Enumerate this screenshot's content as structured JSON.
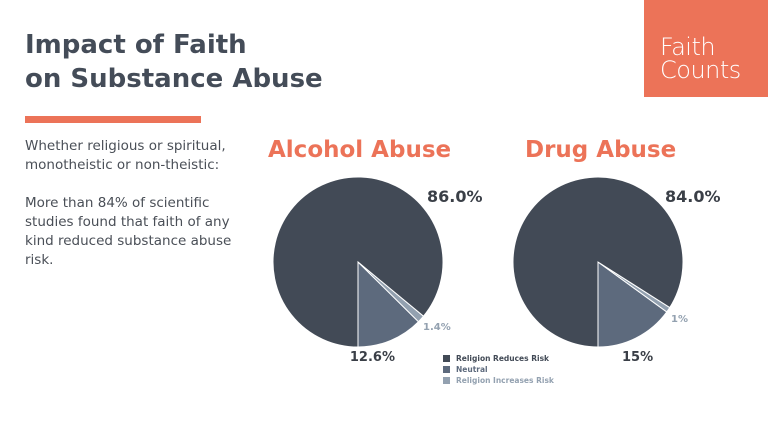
{
  "header": {
    "title_line1": "Impact of Faith",
    "title_line2": "on Substance Abuse"
  },
  "logo": {
    "line1": "Faith",
    "line2": "Counts"
  },
  "body": {
    "para1": "Whether religious or spiritual, monotheistic or non-theistic:",
    "para2": "More than 84% of scientific studies found that faith of any kind reduced substance abuse risk."
  },
  "colors": {
    "accent": "#ec7358",
    "reduces": "#424a56",
    "neutral": "#5d6a7d",
    "increases": "#93a1b0"
  },
  "chart_data": [
    {
      "type": "pie",
      "title": "Alcohol Abuse",
      "labels": [
        "Religion Reduces Risk",
        "Neutral",
        "Religion Increases Risk"
      ],
      "values": [
        86.0,
        12.6,
        1.4
      ],
      "value_labels": [
        "86.0%",
        "12.6%",
        "1.4%"
      ]
    },
    {
      "type": "pie",
      "title": "Drug Abuse",
      "labels": [
        "Religion Reduces Risk",
        "Neutral",
        "Religion Increases Risk"
      ],
      "values": [
        84.0,
        15,
        1
      ],
      "value_labels": [
        "84.0%",
        "15%",
        "1%"
      ]
    }
  ],
  "legend": {
    "items": [
      "Religion Reduces Risk",
      "Neutral",
      "Religion Increases Risk"
    ]
  }
}
